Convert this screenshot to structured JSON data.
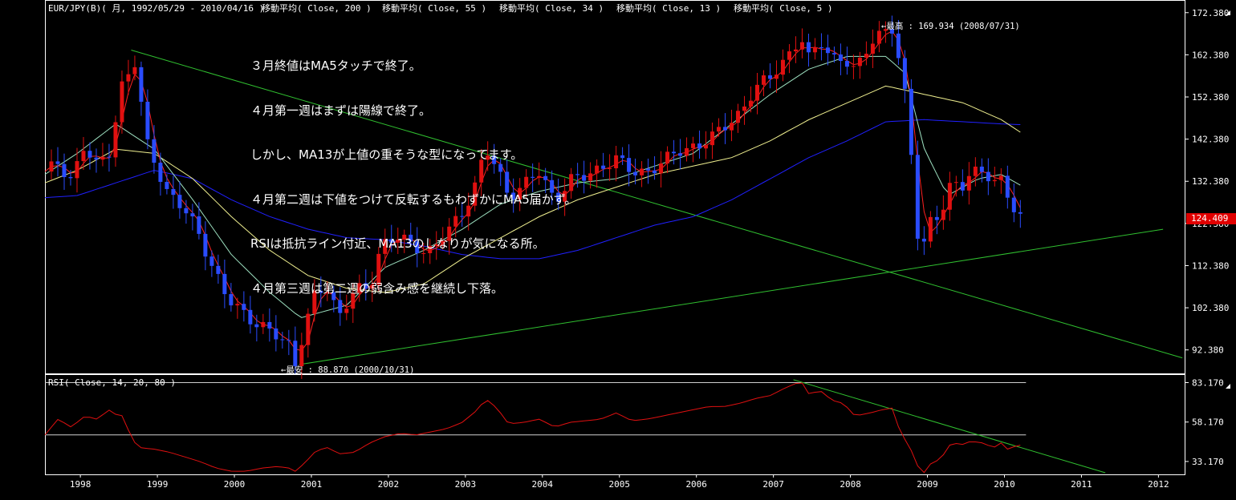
{
  "header": {
    "symbol": "EUR/JPY(B)( 月, 1992/05/29 - 2010/04/16 )",
    "ma_labels": [
      "移動平均( Close, 200 )",
      "移動平均( Close, 55 )",
      "移動平均( Close, 34 )",
      "移動平均( Close, 13 )",
      "移動平均( Close, 5 )"
    ]
  },
  "rsi_label": "RSI( Close, 14, 20, 80 )",
  "notes": [
    "３月終値はMA5タッチで終了。",
    "４月第一週はまずは陽線で終了。",
    "しかし、MA13が上値の重そうな型になってます。",
    "４月第二週は下値をつけて反転するもわずかにMA5届かず。",
    "RSIは抵抗ライン付近、MA13のしなりが気になる所。",
    "４月第三週は第二週の弱含み感を継続し下落。"
  ],
  "annotations": {
    "high": "最高 : 169.934 (2008/07/31)",
    "low": "最安 : 88.870 (2000/10/31)"
  },
  "current_price": "124.409",
  "colors": {
    "up": "#e01010",
    "down": "#2a4cff",
    "ma5": "#ff2020",
    "ma13": "#9de0c0",
    "ma34": "#f0f090",
    "ma55": "#2020ff",
    "trend": "#30c030",
    "rsi": "#e01010"
  },
  "chart_data": [
    {
      "type": "candlestick",
      "title": "EUR/JPY(B) 月足",
      "ylim": [
        87.0,
        175.0
      ],
      "y_ticks": [
        "172.380",
        "162.380",
        "152.380",
        "142.380",
        "132.380",
        "122.380",
        "112.380",
        "102.380",
        "92.380"
      ],
      "x_ticks": [
        "1998",
        "1999",
        "2000",
        "2001",
        "2002",
        "2003",
        "2004",
        "2005",
        "2006",
        "2007",
        "2008",
        "2009",
        "2010",
        "2011",
        "2012"
      ],
      "x_range": [
        1997.58,
        2012.38
      ],
      "anchors": [
        [
          1997.58,
          134
        ],
        [
          1997.75,
          137
        ],
        [
          1997.92,
          133
        ],
        [
          1998.08,
          140
        ],
        [
          1998.25,
          136
        ],
        [
          1998.42,
          140
        ],
        [
          1998.58,
          155
        ],
        [
          1998.75,
          160
        ],
        [
          1998.9,
          142
        ],
        [
          1999.0,
          138
        ],
        [
          1999.15,
          130
        ],
        [
          1999.35,
          126
        ],
        [
          1999.55,
          122
        ],
        [
          1999.75,
          112
        ],
        [
          1999.95,
          104
        ],
        [
          2000.15,
          102
        ],
        [
          2000.35,
          98
        ],
        [
          2000.55,
          96
        ],
        [
          2000.75,
          94
        ],
        [
          2000.83,
          89.5
        ],
        [
          2000.95,
          97
        ],
        [
          2001.1,
          106
        ],
        [
          2001.25,
          107
        ],
        [
          2001.4,
          101
        ],
        [
          2001.6,
          106
        ],
        [
          2001.8,
          107
        ],
        [
          2001.95,
          118
        ],
        [
          2002.15,
          119
        ],
        [
          2002.35,
          117
        ],
        [
          2002.55,
          116
        ],
        [
          2002.7,
          118
        ],
        [
          2002.85,
          121
        ],
        [
          2003.0,
          125
        ],
        [
          2003.15,
          131
        ],
        [
          2003.3,
          140
        ],
        [
          2003.45,
          135
        ],
        [
          2003.6,
          129
        ],
        [
          2003.8,
          132
        ],
        [
          2004.0,
          134
        ],
        [
          2004.2,
          128
        ],
        [
          2004.4,
          133
        ],
        [
          2004.6,
          133
        ],
        [
          2004.8,
          136
        ],
        [
          2005.0,
          138
        ],
        [
          2005.2,
          134
        ],
        [
          2005.4,
          135
        ],
        [
          2005.6,
          137
        ],
        [
          2005.8,
          139
        ],
        [
          2006.0,
          141
        ],
        [
          2006.2,
          142
        ],
        [
          2006.4,
          145
        ],
        [
          2006.6,
          149
        ],
        [
          2006.8,
          154
        ],
        [
          2007.0,
          157
        ],
        [
          2007.2,
          162
        ],
        [
          2007.4,
          166
        ],
        [
          2007.5,
          161
        ],
        [
          2007.65,
          166
        ],
        [
          2007.8,
          162
        ],
        [
          2007.95,
          161
        ],
        [
          2008.1,
          158
        ],
        [
          2008.3,
          166
        ],
        [
          2008.45,
          168
        ],
        [
          2008.58,
          168
        ],
        [
          2008.7,
          158
        ],
        [
          2008.8,
          147
        ],
        [
          2008.9,
          121
        ],
        [
          2009.0,
          118
        ],
        [
          2009.1,
          124
        ],
        [
          2009.2,
          123
        ],
        [
          2009.35,
          132
        ],
        [
          2009.5,
          132
        ],
        [
          2009.6,
          135
        ],
        [
          2009.75,
          134
        ],
        [
          2009.9,
          132
        ],
        [
          2010.0,
          133
        ],
        [
          2010.1,
          129
        ],
        [
          2010.2,
          125
        ],
        [
          2010.29,
          124.4
        ]
      ],
      "ma200": [
        [
          1997.58,
          128.5
        ],
        [
          1998.0,
          129
        ],
        [
          1998.5,
          132
        ],
        [
          1999.0,
          135
        ],
        [
          1999.5,
          133
        ],
        [
          2000.0,
          128
        ],
        [
          2000.5,
          124
        ],
        [
          2001.0,
          121
        ],
        [
          2001.5,
          119
        ],
        [
          2002.0,
          118.5
        ],
        [
          2002.5,
          117
        ],
        [
          2003.0,
          115
        ],
        [
          2003.5,
          114
        ],
        [
          2004.0,
          114
        ],
        [
          2004.5,
          116
        ],
        [
          2005.0,
          119
        ],
        [
          2005.5,
          122
        ],
        [
          2006.0,
          124
        ],
        [
          2006.5,
          128
        ],
        [
          2007.0,
          133
        ],
        [
          2007.5,
          138
        ],
        [
          2008.0,
          142
        ],
        [
          2008.5,
          146.5
        ],
        [
          2009.0,
          147
        ],
        [
          2009.5,
          146.5
        ],
        [
          2010.0,
          146
        ],
        [
          2010.29,
          145.8
        ]
      ],
      "ma55": [
        [
          1997.58,
          132
        ],
        [
          1998.0,
          135
        ],
        [
          1998.5,
          140
        ],
        [
          1999.0,
          139
        ],
        [
          1999.5,
          133
        ],
        [
          2000.0,
          124
        ],
        [
          2000.5,
          116
        ],
        [
          2001.0,
          110
        ],
        [
          2001.5,
          107
        ],
        [
          2002.0,
          106
        ],
        [
          2002.5,
          108
        ],
        [
          2003.0,
          114
        ],
        [
          2003.5,
          119
        ],
        [
          2004.0,
          124
        ],
        [
          2004.5,
          128
        ],
        [
          2005.0,
          131
        ],
        [
          2005.5,
          134
        ],
        [
          2006.0,
          136
        ],
        [
          2006.5,
          138
        ],
        [
          2007.0,
          142
        ],
        [
          2007.5,
          147
        ],
        [
          2008.0,
          151
        ],
        [
          2008.5,
          155
        ],
        [
          2009.0,
          153
        ],
        [
          2009.5,
          151
        ],
        [
          2010.0,
          147
        ],
        [
          2010.29,
          143.5
        ]
      ],
      "ma34": [
        [
          1997.58,
          134
        ],
        [
          1998.0,
          139
        ],
        [
          1998.5,
          146
        ],
        [
          1999.0,
          140
        ],
        [
          1999.5,
          128
        ],
        [
          2000.0,
          115
        ],
        [
          2000.5,
          106
        ],
        [
          2000.9,
          100
        ],
        [
          2001.5,
          103
        ],
        [
          2002.0,
          112
        ],
        [
          2002.5,
          116
        ],
        [
          2003.0,
          121
        ],
        [
          2003.5,
          127
        ],
        [
          2004.0,
          130
        ],
        [
          2004.5,
          132
        ],
        [
          2005.0,
          133
        ],
        [
          2005.5,
          136
        ],
        [
          2006.0,
          139
        ],
        [
          2006.5,
          146
        ],
        [
          2007.0,
          153
        ],
        [
          2007.5,
          159
        ],
        [
          2008.0,
          162
        ],
        [
          2008.5,
          162
        ],
        [
          2008.75,
          158
        ],
        [
          2009.0,
          140
        ],
        [
          2009.3,
          129
        ],
        [
          2009.7,
          133
        ],
        [
          2010.0,
          134
        ],
        [
          2010.29,
          131
        ]
      ],
      "rsi": {
        "ylim": [
          25,
          88
        ],
        "levels": [
          83.17,
          50.0
        ],
        "y_ticks": [
          "83.170",
          "58.170",
          "33.170"
        ],
        "anchors": [
          [
            1997.58,
            50
          ],
          [
            1997.75,
            60
          ],
          [
            1997.92,
            55
          ],
          [
            1998.1,
            62
          ],
          [
            1998.25,
            60
          ],
          [
            1998.42,
            66
          ],
          [
            1998.5,
            63
          ],
          [
            1998.6,
            62
          ],
          [
            1998.7,
            48
          ],
          [
            1998.8,
            42
          ],
          [
            1999.0,
            41
          ],
          [
            1999.2,
            39
          ],
          [
            1999.4,
            36
          ],
          [
            1999.6,
            33
          ],
          [
            1999.8,
            29
          ],
          [
            2000.0,
            27
          ],
          [
            2000.2,
            27
          ],
          [
            2000.4,
            29
          ],
          [
            2000.6,
            30
          ],
          [
            2000.75,
            29
          ],
          [
            2000.83,
            27
          ],
          [
            2000.95,
            32
          ],
          [
            2001.1,
            40
          ],
          [
            2001.25,
            42
          ],
          [
            2001.4,
            38
          ],
          [
            2001.6,
            39
          ],
          [
            2001.8,
            45
          ],
          [
            2002.0,
            49
          ],
          [
            2002.2,
            51
          ],
          [
            2002.4,
            50
          ],
          [
            2002.6,
            52
          ],
          [
            2002.8,
            54
          ],
          [
            2003.0,
            58
          ],
          [
            2003.2,
            66
          ],
          [
            2003.3,
            73
          ],
          [
            2003.45,
            67
          ],
          [
            2003.6,
            57
          ],
          [
            2003.8,
            58
          ],
          [
            2004.0,
            60
          ],
          [
            2004.2,
            55
          ],
          [
            2004.4,
            58
          ],
          [
            2004.6,
            59
          ],
          [
            2004.8,
            60
          ],
          [
            2005.0,
            64
          ],
          [
            2005.2,
            59
          ],
          [
            2005.4,
            60
          ],
          [
            2005.6,
            62
          ],
          [
            2005.8,
            64
          ],
          [
            2006.0,
            66
          ],
          [
            2006.2,
            68
          ],
          [
            2006.4,
            68
          ],
          [
            2006.6,
            70
          ],
          [
            2006.8,
            73
          ],
          [
            2007.0,
            75
          ],
          [
            2007.2,
            80
          ],
          [
            2007.4,
            84
          ],
          [
            2007.5,
            76
          ],
          [
            2007.65,
            78
          ],
          [
            2007.8,
            72
          ],
          [
            2007.95,
            70
          ],
          [
            2008.1,
            62
          ],
          [
            2008.3,
            64
          ],
          [
            2008.45,
            66
          ],
          [
            2008.58,
            67
          ],
          [
            2008.7,
            50
          ],
          [
            2008.8,
            44
          ],
          [
            2008.9,
            31
          ],
          [
            2009.0,
            26
          ],
          [
            2009.1,
            33
          ],
          [
            2009.2,
            34
          ],
          [
            2009.35,
            45
          ],
          [
            2009.5,
            44
          ],
          [
            2009.6,
            46
          ],
          [
            2009.75,
            45
          ],
          [
            2009.9,
            42
          ],
          [
            2010.0,
            45
          ],
          [
            2010.1,
            40
          ],
          [
            2010.2,
            44
          ],
          [
            2010.29,
            43
          ]
        ]
      }
    }
  ]
}
